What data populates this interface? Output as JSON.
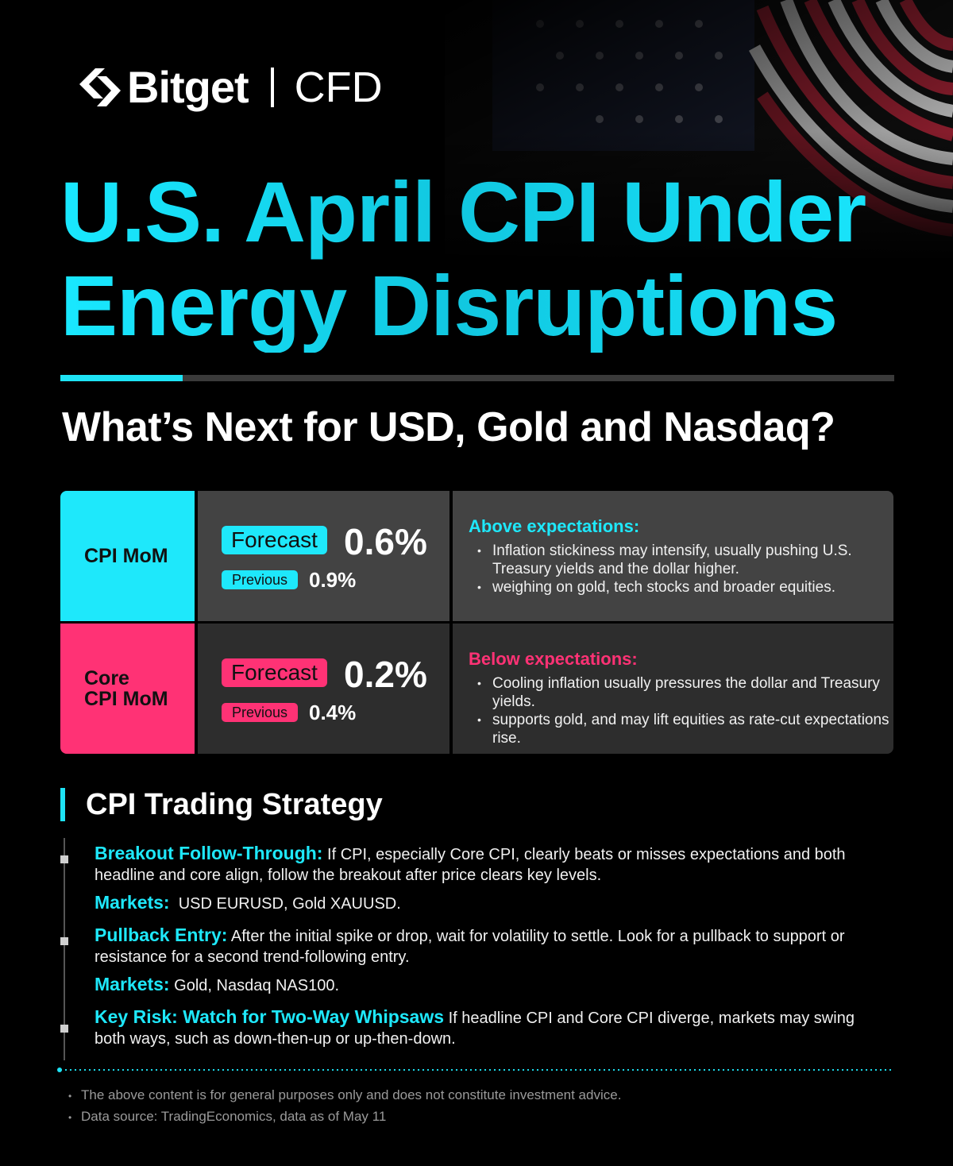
{
  "brand": {
    "name": "Bitget",
    "product": "CFD",
    "logo_icon": "bitget-logo-icon"
  },
  "title": {
    "line1": "U.S. April CPI Under",
    "line2": "Energy Disruptions"
  },
  "subtitle": "What’s Next for USD, Gold and Nasdaq?",
  "colors": {
    "cyan": "#1ee8fb",
    "pink": "#ff3275",
    "background": "#000000"
  },
  "table": {
    "rows": [
      {
        "label": "CPI MoM",
        "forecast_label": "Forecast",
        "forecast_value": "0.6%",
        "previous_label": "Previous",
        "previous_value": "0.9%",
        "scenario_title": "Above expectations:",
        "points": [
          "Inflation stickiness may intensify, usually pushing U.S. Treasury yields and the dollar higher.",
          "weighing on gold, tech stocks and broader equities."
        ]
      },
      {
        "label_line1": "Core",
        "label_line2": "CPI MoM",
        "forecast_label": "Forecast",
        "forecast_value": "0.2%",
        "previous_label": "Previous",
        "previous_value": "0.4%",
        "scenario_title": "Below expectations:",
        "points": [
          "Cooling inflation usually pressures the dollar and Treasury yields.",
          "supports gold, and may lift equities as rate-cut expectations rise."
        ]
      }
    ]
  },
  "strategy": {
    "title": "CPI Trading Strategy",
    "items": [
      {
        "head": "Breakout Follow-Through:",
        "text": " If CPI, especially Core CPI, clearly beats or misses expectations and both headline and core align, follow the breakout after price clears key levels.",
        "markets_label": "Markets:",
        "markets": "  USD EURUSD, Gold XAUUSD."
      },
      {
        "head": "Pullback Entry:",
        "text": " After the initial spike or drop, wait for volatility to settle. Look for a pullback to support or resistance for a second trend-following entry.",
        "markets_label": "Markets:",
        "markets": " Gold, Nasdaq NAS100."
      },
      {
        "head": "Key Risk: Watch for Two-Way Whipsaws",
        "text": " If headline CPI and Core CPI diverge, markets may swing both ways, such as down-then-up or up-then-down."
      }
    ]
  },
  "disclaimers": [
    "The above content is for general purposes only and does not constitute investment advice.",
    "Data source: TradingEconomics, data as of May 11"
  ]
}
